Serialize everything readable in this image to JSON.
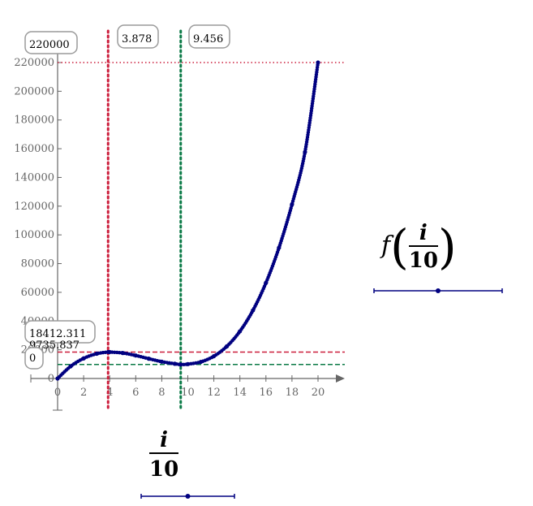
{
  "colors": {
    "curve": "#000080",
    "marker_red": "#cc1e3c",
    "marker_green": "#0a7a46",
    "axis": "#666666",
    "label_box_border": "#9a9a9a"
  },
  "y_axis_labels": {
    "axis_max": "220000",
    "marker_max": "18412.311",
    "marker_min": "9735.837",
    "marker_zero": "0"
  },
  "x_axis_labels": {
    "marker_1": "3.878",
    "marker_2": "9.456"
  },
  "expressions": {
    "y_expr": {
      "func": "f",
      "numerator": "i",
      "denominator": "10"
    },
    "x_expr": {
      "numerator": "i",
      "denominator": "10"
    }
  },
  "chart_data": {
    "type": "scatter",
    "title": "",
    "xlabel": "i/10",
    "ylabel": "f(i/10)",
    "xlim": [
      0,
      20
    ],
    "ylim": [
      0,
      220000
    ],
    "grid": false,
    "x_ticks": [
      "0",
      "2",
      "4",
      "6",
      "8",
      "10",
      "12",
      "14",
      "16",
      "18",
      "20"
    ],
    "y_ticks": [
      "0",
      "20000",
      "40000",
      "60000",
      "80000",
      "100000",
      "120000",
      "140000",
      "160000",
      "180000",
      "200000",
      "220000"
    ],
    "series": [
      {
        "values": [
          [
            0,
            0
          ],
          [
            1,
            8475
          ],
          [
            2,
            14000
          ],
          [
            3,
            17250
          ],
          [
            3.878,
            18412.311
          ],
          [
            4,
            18400
          ],
          [
            5,
            17750
          ],
          [
            6,
            16000
          ],
          [
            7,
            13800
          ],
          [
            8,
            11700
          ],
          [
            9,
            10250
          ],
          [
            9.456,
            9735.837
          ],
          [
            10,
            10000
          ],
          [
            11,
            11550
          ],
          [
            12,
            15500
          ],
          [
            13,
            22400
          ],
          [
            14,
            32850
          ],
          [
            15,
            47400
          ],
          [
            16,
            66600
          ],
          [
            17,
            91000
          ],
          [
            18,
            121200
          ],
          [
            19,
            157700
          ],
          [
            20,
            220000
          ]
        ],
        "marker": "dot",
        "style": "solid"
      }
    ],
    "x_markers": [
      {
        "value": 3.878,
        "color": "#cc1e3c",
        "style": "dotted"
      },
      {
        "value": 9.456,
        "color": "#0a7a46",
        "style": "dotted"
      }
    ],
    "y_markers": [
      {
        "value": 220000,
        "color": "#cc1e3c",
        "style": "dotted"
      },
      {
        "value": 18412.311,
        "color": "#cc1e3c",
        "style": "dashed"
      },
      {
        "value": 9735.837,
        "color": "#0a7a46",
        "style": "dashed"
      }
    ]
  }
}
